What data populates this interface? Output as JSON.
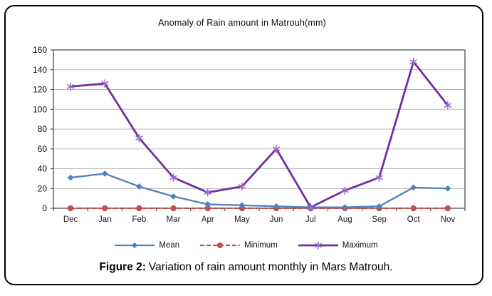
{
  "figure": {
    "caption_label": "Figure 2:",
    "caption_text": "Variation of rain amount monthly in Mars Matrouh."
  },
  "chart_data": {
    "type": "line",
    "title": "Anomaly of Rain amount in Matrouh(mm)",
    "categories": [
      "Dec",
      "Jan",
      "Feb",
      "Mar",
      "Apr",
      "May",
      "Jun",
      "Jul",
      "Aug",
      "Sep",
      "Oct",
      "Nov"
    ],
    "series": [
      {
        "name": "Mean",
        "color": "#4f81bd",
        "marker": "diamond",
        "marker_color": "#4f81bd",
        "dash": "solid",
        "values": [
          31,
          35,
          22,
          12,
          4,
          3,
          2,
          1,
          1,
          2,
          21,
          20
        ]
      },
      {
        "name": "Minimum",
        "color": "#c0504d",
        "marker": "circle",
        "marker_color": "#c0504d",
        "dash": "dashed",
        "values": [
          0,
          0,
          0,
          0,
          0,
          0,
          0,
          0,
          0,
          0,
          0,
          0
        ]
      },
      {
        "name": "Maximum",
        "color": "#7030a0",
        "marker": "asterisk",
        "marker_color": "#9b6bc7",
        "dash": "solid",
        "values": [
          123,
          126,
          71,
          31,
          16,
          22,
          60,
          1,
          18,
          31,
          148,
          104
        ]
      }
    ],
    "ylim": [
      0,
      160
    ],
    "ytick_step": 20,
    "yticks": [
      0,
      20,
      40,
      60,
      80,
      100,
      120,
      140,
      160
    ],
    "grid": true,
    "legend_position": "bottom"
  },
  "colors": {
    "grid": "#b8b8b8",
    "axis": "#4d4d4d",
    "background": "#ffffff",
    "border": "#000000"
  }
}
